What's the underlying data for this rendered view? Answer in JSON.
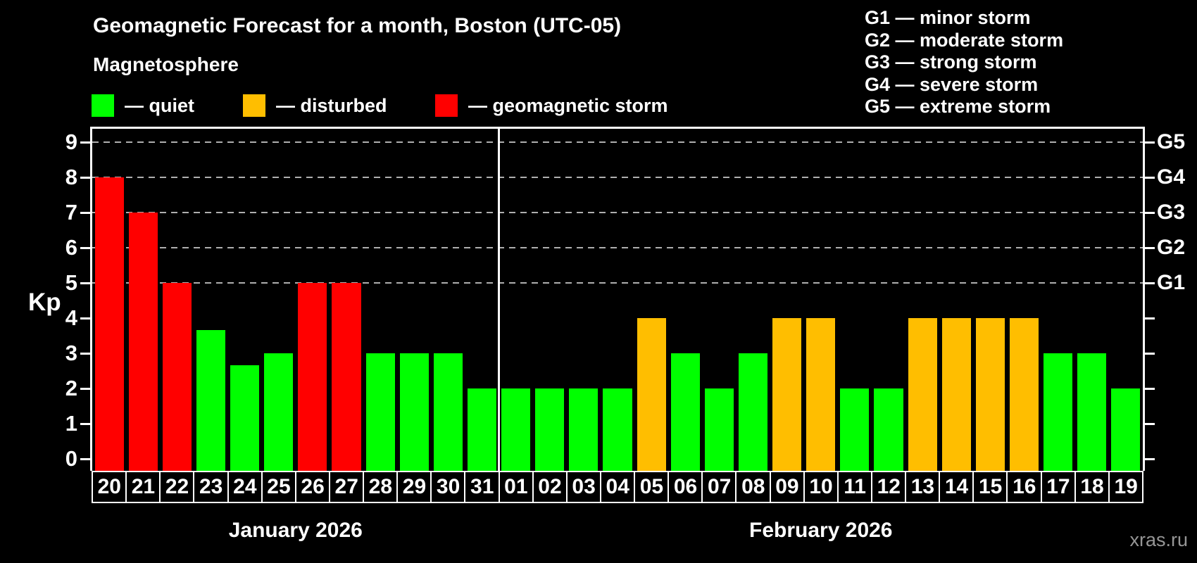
{
  "header": {
    "subtitle": "Magnetosphere",
    "legend": [
      {
        "key": "quiet",
        "label": "— quiet"
      },
      {
        "key": "disturbed",
        "label": "— disturbed"
      },
      {
        "key": "storm",
        "label": "— geomagnetic storm"
      }
    ],
    "g_legend": [
      "G1 — minor storm",
      "G2 — moderate storm",
      "G3 — strong storm",
      "G4 — severe storm",
      "G5 — extreme storm"
    ]
  },
  "colors": {
    "quiet": "#00ff00",
    "disturbed": "#ffbe00",
    "storm": "#ff0000",
    "grid": "#afafaf",
    "axis": "#ffffff",
    "background": "#000000"
  },
  "watermark": "xras.ru",
  "chart_data": {
    "type": "bar",
    "title": "Geomagnetic Forecast for a month, Boston (UTC-05)",
    "ylabel": "Kp",
    "ylim": [
      0,
      9.4
    ],
    "yticks": [
      0,
      1,
      2,
      3,
      4,
      5,
      6,
      7,
      8,
      9
    ],
    "gridlines_at_kp": [
      5,
      6,
      7,
      8,
      9
    ],
    "grid_style": "dashed horizontal lines at Kp 5-9 only",
    "right_axis": [
      {
        "kp": 5,
        "label": "G1"
      },
      {
        "kp": 6,
        "label": "G2"
      },
      {
        "kp": 7,
        "label": "G3"
      },
      {
        "kp": 8,
        "label": "G4"
      },
      {
        "kp": 9,
        "label": "G5"
      }
    ],
    "months": [
      {
        "label": "January 2026",
        "days": 12
      },
      {
        "label": "February 2026",
        "days": 19
      }
    ],
    "bars": [
      {
        "date": "20",
        "kp": 8,
        "status": "storm"
      },
      {
        "date": "21",
        "kp": 7,
        "status": "storm"
      },
      {
        "date": "22",
        "kp": 5,
        "status": "storm"
      },
      {
        "date": "23",
        "kp": 3.67,
        "status": "quiet"
      },
      {
        "date": "24",
        "kp": 2.67,
        "status": "quiet"
      },
      {
        "date": "25",
        "kp": 3,
        "status": "quiet"
      },
      {
        "date": "26",
        "kp": 5,
        "status": "storm"
      },
      {
        "date": "27",
        "kp": 5,
        "status": "storm"
      },
      {
        "date": "28",
        "kp": 3,
        "status": "quiet"
      },
      {
        "date": "29",
        "kp": 3,
        "status": "quiet"
      },
      {
        "date": "30",
        "kp": 3,
        "status": "quiet"
      },
      {
        "date": "31",
        "kp": 2,
        "status": "quiet"
      },
      {
        "date": "01",
        "kp": 2,
        "status": "quiet"
      },
      {
        "date": "02",
        "kp": 2,
        "status": "quiet"
      },
      {
        "date": "03",
        "kp": 2,
        "status": "quiet"
      },
      {
        "date": "04",
        "kp": 2,
        "status": "quiet"
      },
      {
        "date": "05",
        "kp": 4,
        "status": "disturbed"
      },
      {
        "date": "06",
        "kp": 3,
        "status": "quiet"
      },
      {
        "date": "07",
        "kp": 2,
        "status": "quiet"
      },
      {
        "date": "08",
        "kp": 3,
        "status": "quiet"
      },
      {
        "date": "09",
        "kp": 4,
        "status": "disturbed"
      },
      {
        "date": "10",
        "kp": 4,
        "status": "disturbed"
      },
      {
        "date": "11",
        "kp": 2,
        "status": "quiet"
      },
      {
        "date": "12",
        "kp": 2,
        "status": "quiet"
      },
      {
        "date": "13",
        "kp": 4,
        "status": "disturbed"
      },
      {
        "date": "14",
        "kp": 4,
        "status": "disturbed"
      },
      {
        "date": "15",
        "kp": 4,
        "status": "disturbed"
      },
      {
        "date": "16",
        "kp": 4,
        "status": "disturbed"
      },
      {
        "date": "17",
        "kp": 3,
        "status": "quiet"
      },
      {
        "date": "18",
        "kp": 3,
        "status": "quiet"
      },
      {
        "date": "19",
        "kp": 2,
        "status": "quiet"
      }
    ]
  }
}
